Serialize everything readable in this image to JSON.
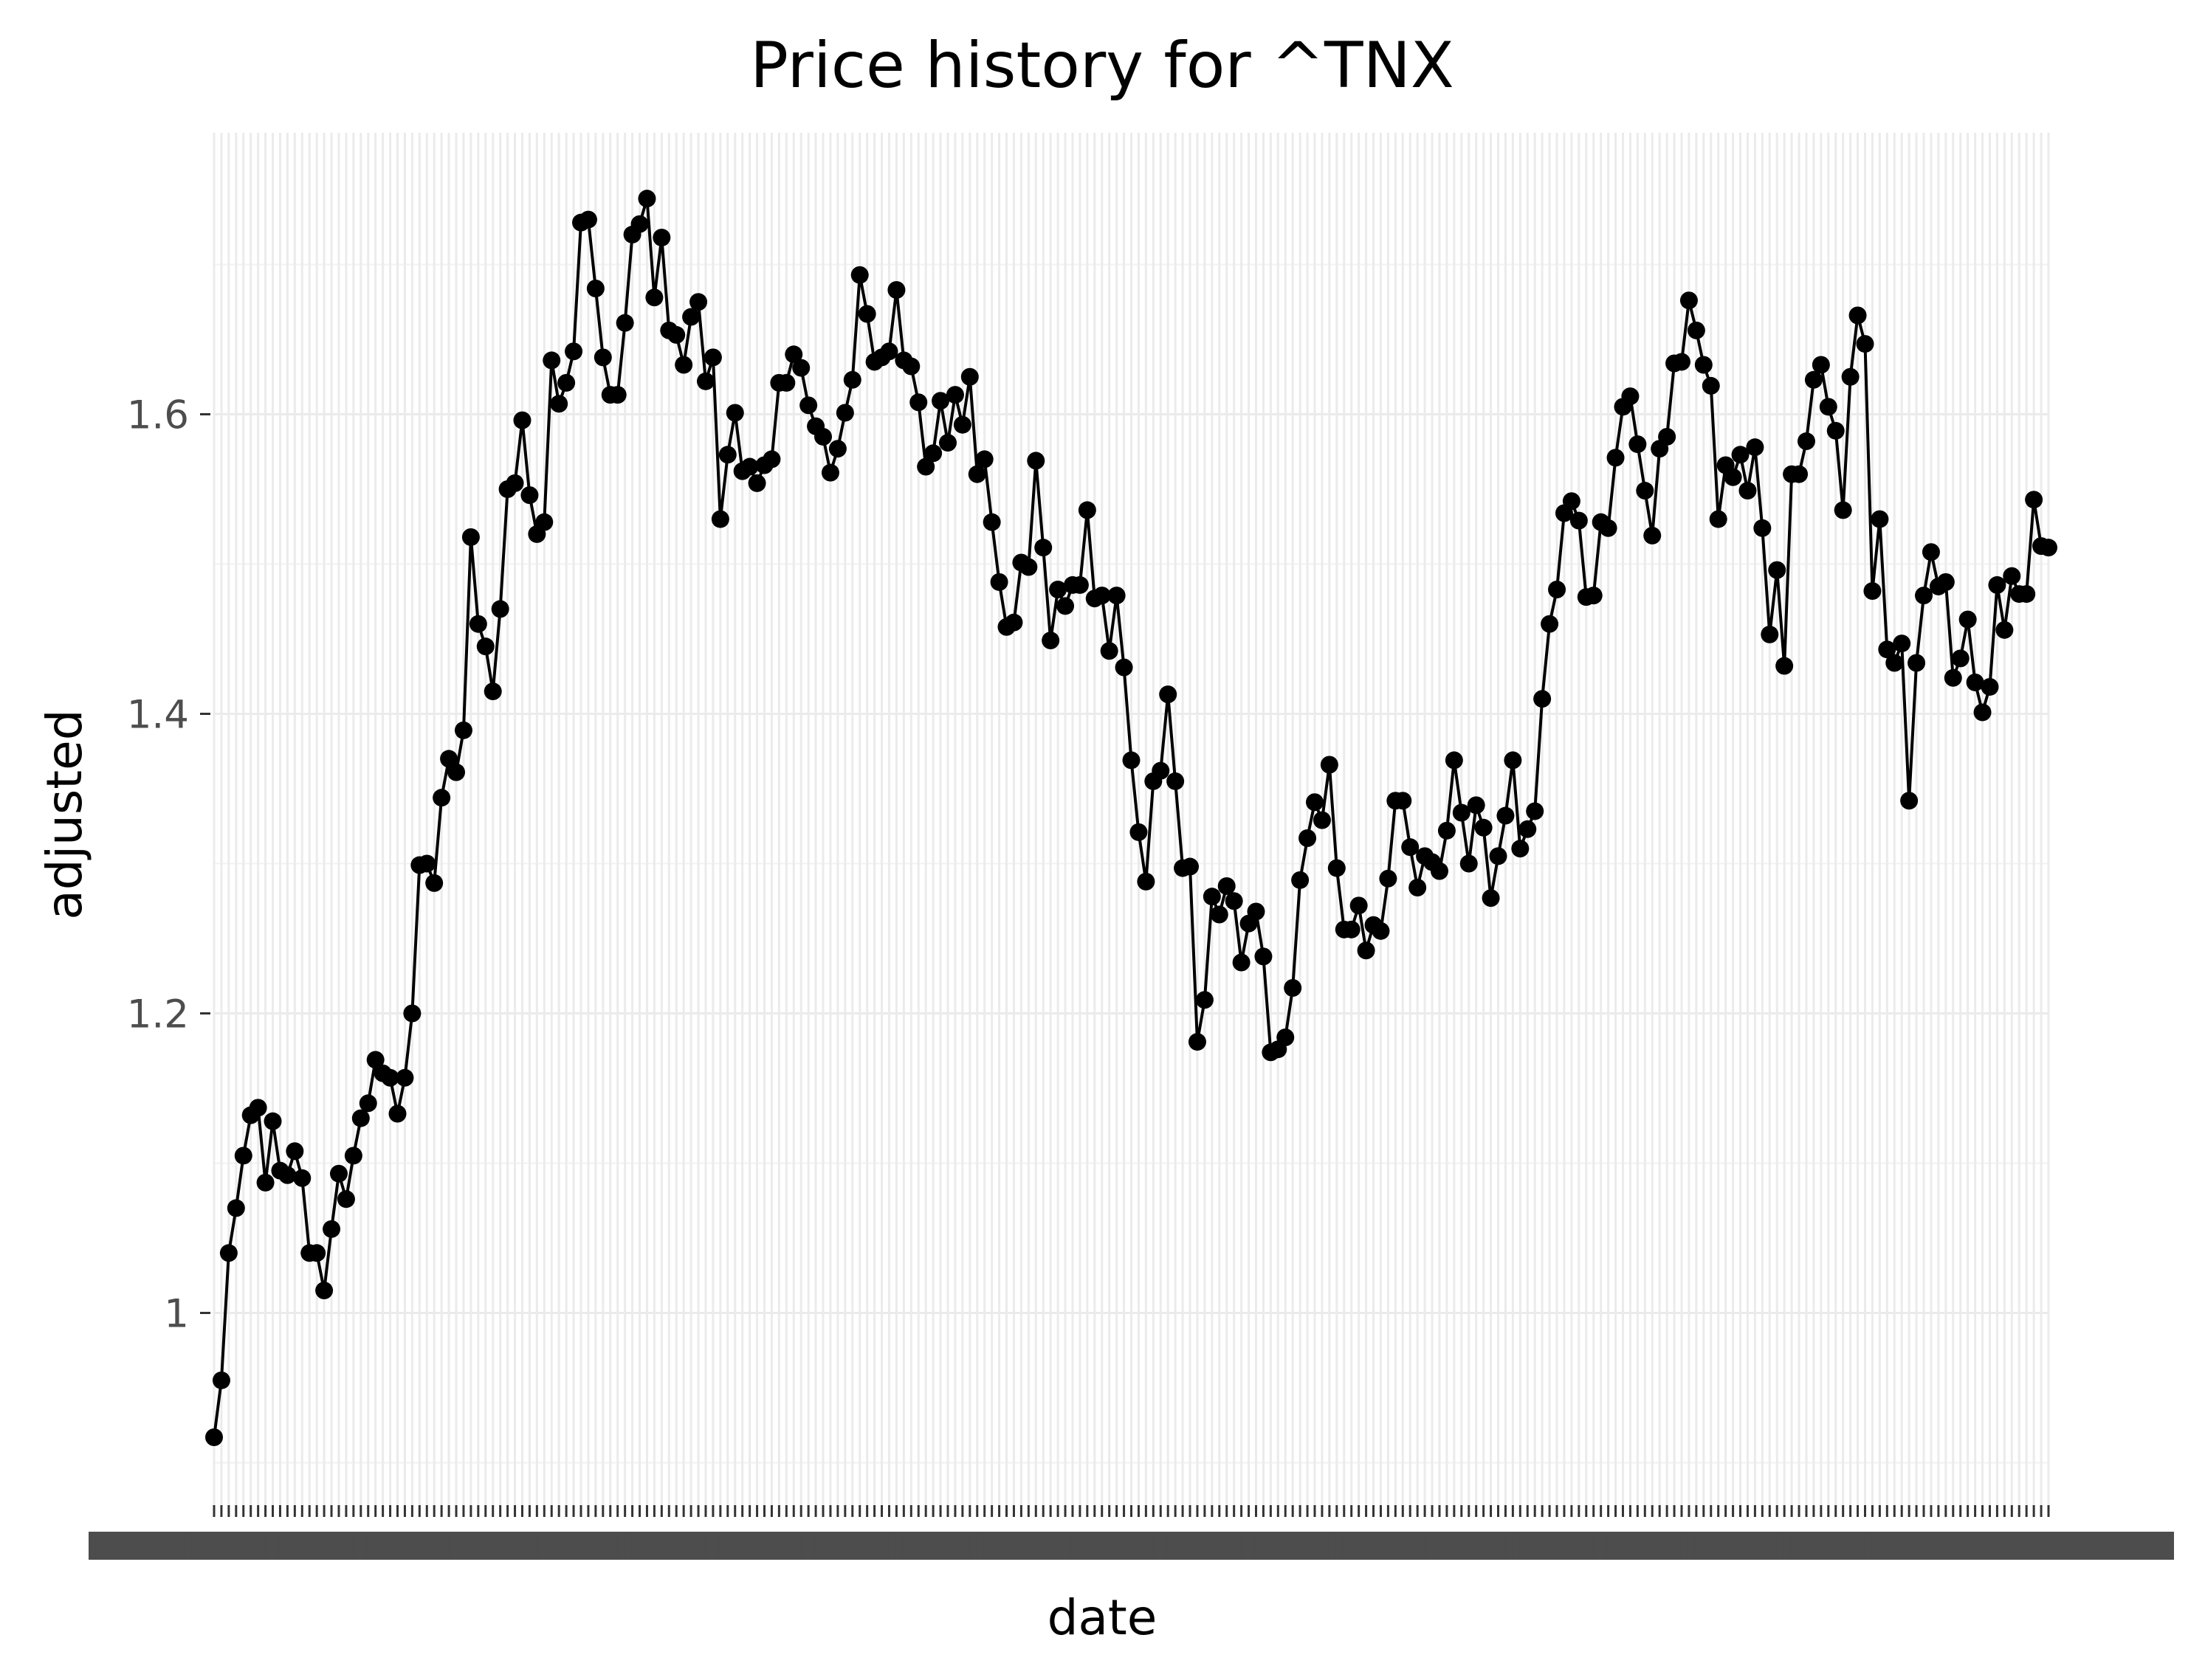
{
  "chart_data": {
    "type": "line",
    "title": "Price history for ^TNX",
    "xlabel": "date",
    "ylabel": "adjusted",
    "y_ticks": [
      1.0,
      1.2,
      1.4,
      1.6
    ],
    "y_tick_labels": [
      "1",
      "1.2",
      "1.4",
      "1.6"
    ],
    "ylim": [
      0.85,
      1.78
    ],
    "grid": true,
    "markers": true,
    "color": "#000000",
    "background": "#ffffff",
    "x_tick_labels_note": "one date tick label per observation, rendered overlapping and illegible",
    "values": [
      0.917,
      0.955,
      1.04,
      1.07,
      1.105,
      1.132,
      1.137,
      1.087,
      1.128,
      1.095,
      1.092,
      1.108,
      1.09,
      1.04,
      1.04,
      1.015,
      1.056,
      1.093,
      1.076,
      1.105,
      1.13,
      1.14,
      1.169,
      1.16,
      1.157,
      1.133,
      1.157,
      1.2,
      1.299,
      1.3,
      1.287,
      1.344,
      1.37,
      1.361,
      1.389,
      1.518,
      1.46,
      1.445,
      1.415,
      1.47,
      1.55,
      1.554,
      1.596,
      1.546,
      1.52,
      1.528,
      1.636,
      1.607,
      1.621,
      1.642,
      1.728,
      1.73,
      1.684,
      1.638,
      1.613,
      1.613,
      1.661,
      1.72,
      1.727,
      1.744,
      1.678,
      1.718,
      1.656,
      1.653,
      1.633,
      1.665,
      1.675,
      1.622,
      1.638,
      1.53,
      1.573,
      1.601,
      1.562,
      1.565,
      1.554,
      1.566,
      1.57,
      1.621,
      1.621,
      1.64,
      1.631,
      1.606,
      1.592,
      1.585,
      1.561,
      1.577,
      1.601,
      1.623,
      1.693,
      1.667,
      1.635,
      1.638,
      1.642,
      1.683,
      1.636,
      1.632,
      1.608,
      1.565,
      1.574,
      1.609,
      1.581,
      1.613,
      1.593,
      1.625,
      1.56,
      1.57,
      1.528,
      1.488,
      1.458,
      1.461,
      1.501,
      1.498,
      1.569,
      1.511,
      1.449,
      1.483,
      1.472,
      1.486,
      1.486,
      1.536,
      1.477,
      1.479,
      1.442,
      1.479,
      1.431,
      1.369,
      1.321,
      1.288,
      1.355,
      1.362,
      1.413,
      1.355,
      1.297,
      1.298,
      1.181,
      1.209,
      1.278,
      1.266,
      1.285,
      1.275,
      1.234,
      1.26,
      1.268,
      1.238,
      1.174,
      1.176,
      1.184,
      1.217,
      1.289,
      1.317,
      1.341,
      1.329,
      1.366,
      1.297,
      1.256,
      1.256,
      1.272,
      1.242,
      1.259,
      1.255,
      1.29,
      1.342,
      1.342,
      1.311,
      1.284,
      1.305,
      1.301,
      1.295,
      1.322,
      1.369,
      1.334,
      1.3,
      1.339,
      1.324,
      1.277,
      1.305,
      1.332,
      1.369,
      1.31,
      1.323,
      1.335,
      1.41,
      1.46,
      1.483,
      1.534,
      1.542,
      1.529,
      1.478,
      1.479,
      1.528,
      1.524,
      1.571,
      1.605,
      1.612,
      1.58,
      1.549,
      1.519,
      1.577,
      1.585,
      1.634,
      1.635,
      1.676,
      1.656,
      1.633,
      1.619,
      1.53,
      1.566,
      1.558,
      1.573,
      1.549,
      1.578,
      1.524,
      1.453,
      1.496,
      1.432,
      1.56,
      1.56,
      1.582,
      1.623,
      1.633,
      1.605,
      1.589,
      1.536,
      1.625,
      1.666,
      1.647,
      1.482,
      1.53,
      1.443,
      1.434,
      1.447,
      1.342,
      1.434,
      1.479,
      1.508,
      1.485,
      1.488,
      1.424,
      1.437,
      1.463,
      1.421,
      1.401,
      1.418,
      1.486,
      1.456,
      1.492,
      1.48,
      1.48,
      1.543,
      1.512,
      1.511
    ]
  }
}
